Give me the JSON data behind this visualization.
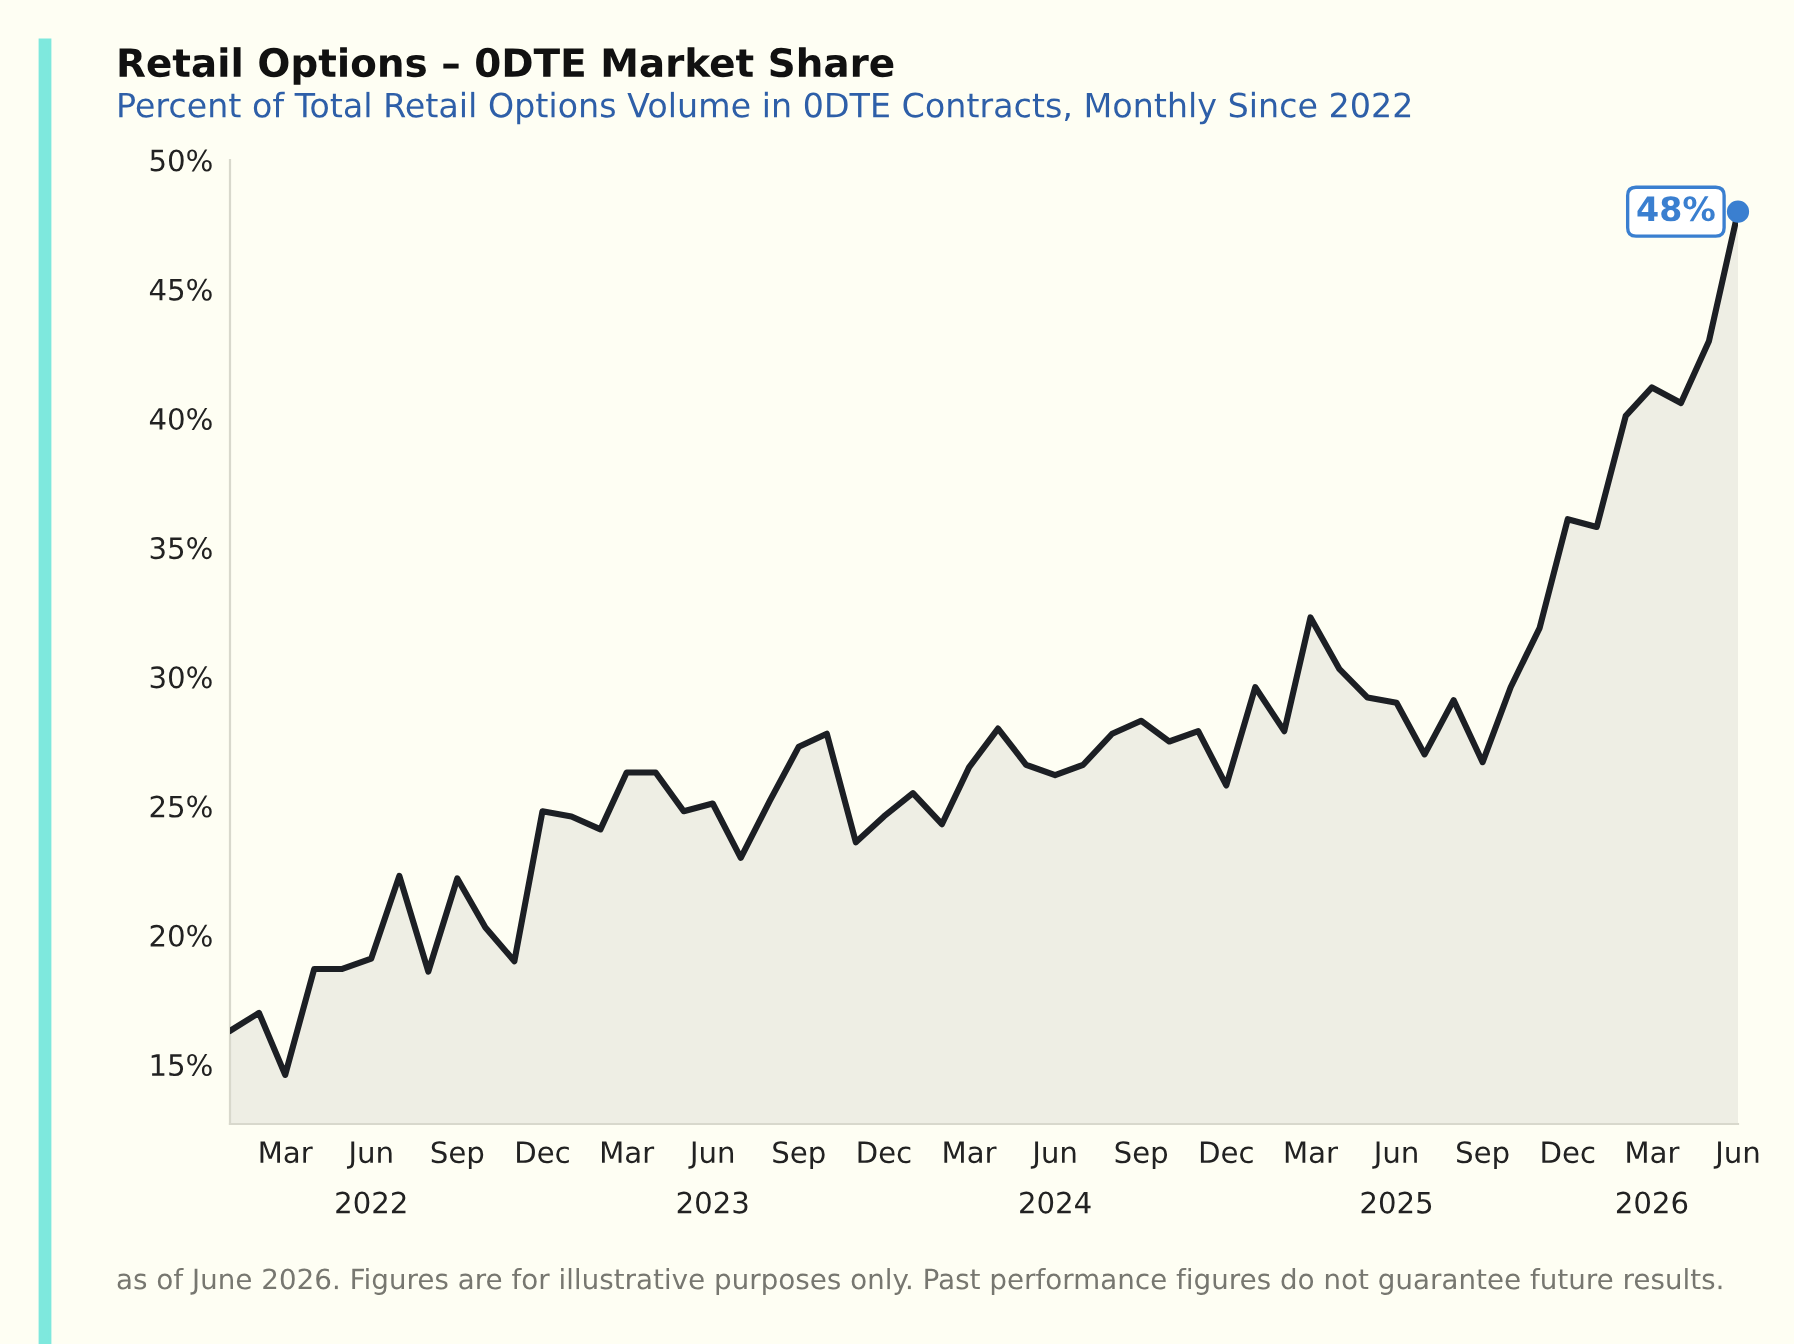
{
  "chart_data": {
    "type": "area",
    "title": "Retail Options – 0DTE Market Share",
    "subtitle": "Percent of Total Retail Options Volume in 0DTE Contracts, Monthly Since 2022",
    "x": [
      "2022-01",
      "2022-02",
      "2022-03",
      "2022-04",
      "2022-05",
      "2022-06",
      "2022-07",
      "2022-08",
      "2022-09",
      "2022-10",
      "2022-11",
      "2022-12",
      "2023-01",
      "2023-02",
      "2023-03",
      "2023-04",
      "2023-05",
      "2023-06",
      "2023-07",
      "2023-08",
      "2023-09",
      "2023-10",
      "2023-11",
      "2023-12",
      "2024-01",
      "2024-02",
      "2024-03",
      "2024-04",
      "2024-05",
      "2024-06",
      "2024-07",
      "2024-08",
      "2024-09",
      "2024-10",
      "2024-11",
      "2024-12",
      "2025-01",
      "2025-02",
      "2025-03",
      "2025-04",
      "2025-05",
      "2025-06",
      "2025-07",
      "2025-08",
      "2025-09",
      "2025-10",
      "2025-11",
      "2025-12",
      "2026-01",
      "2026-02",
      "2026-03",
      "2026-04",
      "2026-05",
      "2026-06"
    ],
    "series": [
      {
        "color": "#1c1f24",
        "values": [
          16.3,
          17.0,
          14.6,
          18.7,
          18.7,
          19.1,
          22.3,
          18.6,
          22.2,
          20.3,
          19.0,
          24.8,
          24.6,
          24.1,
          26.3,
          26.3,
          24.8,
          25.1,
          23.0,
          25.2,
          27.3,
          27.8,
          23.6,
          24.6,
          25.5,
          24.3,
          26.5,
          28.0,
          26.6,
          26.2,
          26.6,
          27.8,
          28.3,
          27.5,
          27.9,
          25.8,
          29.6,
          27.9,
          32.3,
          30.3,
          29.2,
          29.0,
          27.0,
          29.1,
          26.7,
          29.6,
          31.9,
          36.1,
          35.8,
          40.1,
          41.2,
          40.6,
          43.0,
          48.0
        ],
        "value_labels": [
          null,
          null,
          null,
          null,
          null,
          null,
          null,
          null,
          null,
          null,
          null,
          null,
          null,
          null,
          null,
          null,
          null,
          null,
          null,
          null,
          null,
          null,
          null,
          null,
          null,
          null,
          null,
          null,
          null,
          null,
          null,
          null,
          null,
          null,
          null,
          null,
          null,
          null,
          null,
          null,
          null,
          null,
          null,
          null,
          null,
          null,
          null,
          null,
          null,
          null,
          null,
          null,
          null,
          "48%"
        ]
      }
    ],
    "xlim": [
      "2022-01",
      "2026-06"
    ],
    "xticks": [
      {
        "value": "2022-03",
        "label": "Mar"
      },
      {
        "value": "2022-06",
        "label": "Jun\n2022"
      },
      {
        "value": "2022-09",
        "label": "Sep"
      },
      {
        "value": "2022-12",
        "label": "Dec"
      },
      {
        "value": "2023-03",
        "label": "Mar"
      },
      {
        "value": "2023-06",
        "label": "Jun\n2023"
      },
      {
        "value": "2023-09",
        "label": "Sep"
      },
      {
        "value": "2023-12",
        "label": "Dec"
      },
      {
        "value": "2024-03",
        "label": "Mar"
      },
      {
        "value": "2024-06",
        "label": "Jun\n2024"
      },
      {
        "value": "2024-09",
        "label": "Sep"
      },
      {
        "value": "2024-12",
        "label": "Dec"
      },
      {
        "value": "2025-03",
        "label": "Mar"
      },
      {
        "value": "2025-06",
        "label": "Jun\n2025"
      },
      {
        "value": "2025-09",
        "label": "Sep"
      },
      {
        "value": "2025-12",
        "label": "Dec"
      },
      {
        "value": "2026-03",
        "label": "Mar\n2026"
      },
      {
        "value": "2026-06",
        "label": "Jun"
      }
    ],
    "ylim": [
      12.7,
      50
    ],
    "yticks": [
      {
        "value": 15,
        "label": "15%"
      },
      {
        "value": 20,
        "label": "20%"
      },
      {
        "value": 25,
        "label": "25%"
      },
      {
        "value": 30,
        "label": "30%"
      },
      {
        "value": 35,
        "label": "35%"
      },
      {
        "value": 40,
        "label": "40%"
      },
      {
        "value": 45,
        "label": "45%"
      },
      {
        "value": 50,
        "label": "50%"
      }
    ],
    "grid": false,
    "annotations": [
      "as of June 2026. Figures are for illustrative purposes only. Past performance figures do not guarantee future results."
    ]
  }
}
